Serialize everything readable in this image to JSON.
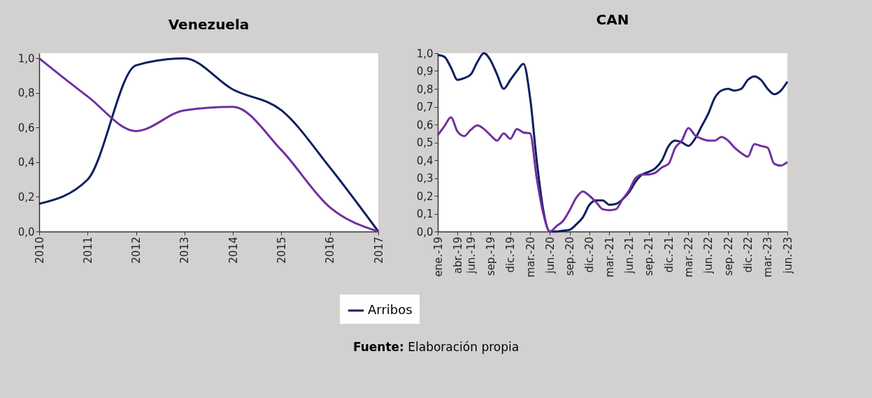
{
  "chart_data": [
    {
      "type": "line",
      "title": "Venezuela",
      "categories": [
        "2010",
        "2011",
        "2012",
        "2013",
        "2014",
        "2015",
        "2016",
        "2017"
      ],
      "series": [
        {
          "name": "Arribos",
          "color": "#0b1f5e",
          "values": [
            0.16,
            0.3,
            0.96,
            1.0,
            0.82,
            0.7,
            0.37,
            0.0
          ]
        },
        {
          "color": "#7030a0",
          "values": [
            1.0,
            0.78,
            0.58,
            0.7,
            0.72,
            0.47,
            0.14,
            0.0
          ]
        }
      ],
      "ylim": [
        0,
        1.03
      ],
      "yticks": [
        {
          "value": 0,
          "label": "0,0"
        },
        {
          "value": 0.2,
          "label": "0,2"
        },
        {
          "value": 0.4,
          "label": "0,4"
        },
        {
          "value": 0.6,
          "label": "0,6"
        },
        {
          "value": 0.8,
          "label": "0,8"
        },
        {
          "value": 1,
          "label": "1,0"
        }
      ],
      "grid": false,
      "legend": "bottom"
    },
    {
      "type": "line",
      "title": "CAN",
      "categories": [
        "ene.-19",
        null,
        null,
        "abr.-19",
        null,
        "jun.-19",
        null,
        null,
        "sep.-19",
        null,
        null,
        "dic.-19",
        null,
        null,
        "mar.-20",
        null,
        null,
        "jun.-20",
        null,
        null,
        "sep.-20",
        null,
        null,
        "dic.-20",
        null,
        null,
        "mar.-21",
        null,
        null,
        "jun.-21",
        null,
        null,
        "sep.-21",
        null,
        null,
        "dic.-21",
        null,
        null,
        "mar.-22",
        null,
        null,
        "jun.-22",
        null,
        null,
        "sep.-22",
        null,
        null,
        "dic.-22",
        null,
        null,
        "mar.-23",
        null,
        null,
        "jun.-23"
      ],
      "series": [
        {
          "name": "Arribos",
          "color": "#0b1f5e",
          "values": [
            0.99,
            0.98,
            0.92,
            0.85,
            0.86,
            0.88,
            0.95,
            1.0,
            0.96,
            0.88,
            0.8,
            0.85,
            0.9,
            0.94,
            0.75,
            0.4,
            0.12,
            0.0,
            0.0,
            0.005,
            0.01,
            0.04,
            0.08,
            0.15,
            0.175,
            0.175,
            0.15,
            0.155,
            0.18,
            0.22,
            0.28,
            0.32,
            0.335,
            0.355,
            0.4,
            0.48,
            0.51,
            0.5,
            0.48,
            0.52,
            0.59,
            0.66,
            0.75,
            0.79,
            0.8,
            0.79,
            0.8,
            0.85,
            0.87,
            0.85,
            0.8,
            0.77,
            0.79,
            0.84
          ]
        },
        {
          "color": "#7030a0",
          "values": [
            0.54,
            0.59,
            0.64,
            0.56,
            0.535,
            0.57,
            0.595,
            0.575,
            0.54,
            0.51,
            0.55,
            0.52,
            0.575,
            0.555,
            0.55,
            0.3,
            0.1,
            0.0,
            0.03,
            0.06,
            0.12,
            0.19,
            0.225,
            0.2,
            0.165,
            0.125,
            0.12,
            0.125,
            0.18,
            0.23,
            0.3,
            0.32,
            0.32,
            0.33,
            0.36,
            0.38,
            0.47,
            0.51,
            0.58,
            0.54,
            0.52,
            0.51,
            0.51,
            0.53,
            0.51,
            0.47,
            0.44,
            0.42,
            0.49,
            0.48,
            0.47,
            0.38,
            0.37,
            0.39
          ]
        }
      ],
      "ylim": [
        0,
        1.0
      ],
      "yticks": [
        {
          "value": 0,
          "label": "0,0"
        },
        {
          "value": 0.1,
          "label": "0,1"
        },
        {
          "value": 0.2,
          "label": "0,2"
        },
        {
          "value": 0.3,
          "label": "0,3"
        },
        {
          "value": 0.4,
          "label": "0,4"
        },
        {
          "value": 0.5,
          "label": "0,5"
        },
        {
          "value": 0.6,
          "label": "0,6"
        },
        {
          "value": 0.7,
          "label": "0,7"
        },
        {
          "value": 0.8,
          "label": "0,8"
        },
        {
          "value": 0.9,
          "label": "0,9"
        },
        {
          "value": 1,
          "label": "1,0"
        }
      ],
      "grid": false,
      "legend": "bottom",
      "annotations": [
        "Fuente: Elaboración propia"
      ]
    }
  ]
}
